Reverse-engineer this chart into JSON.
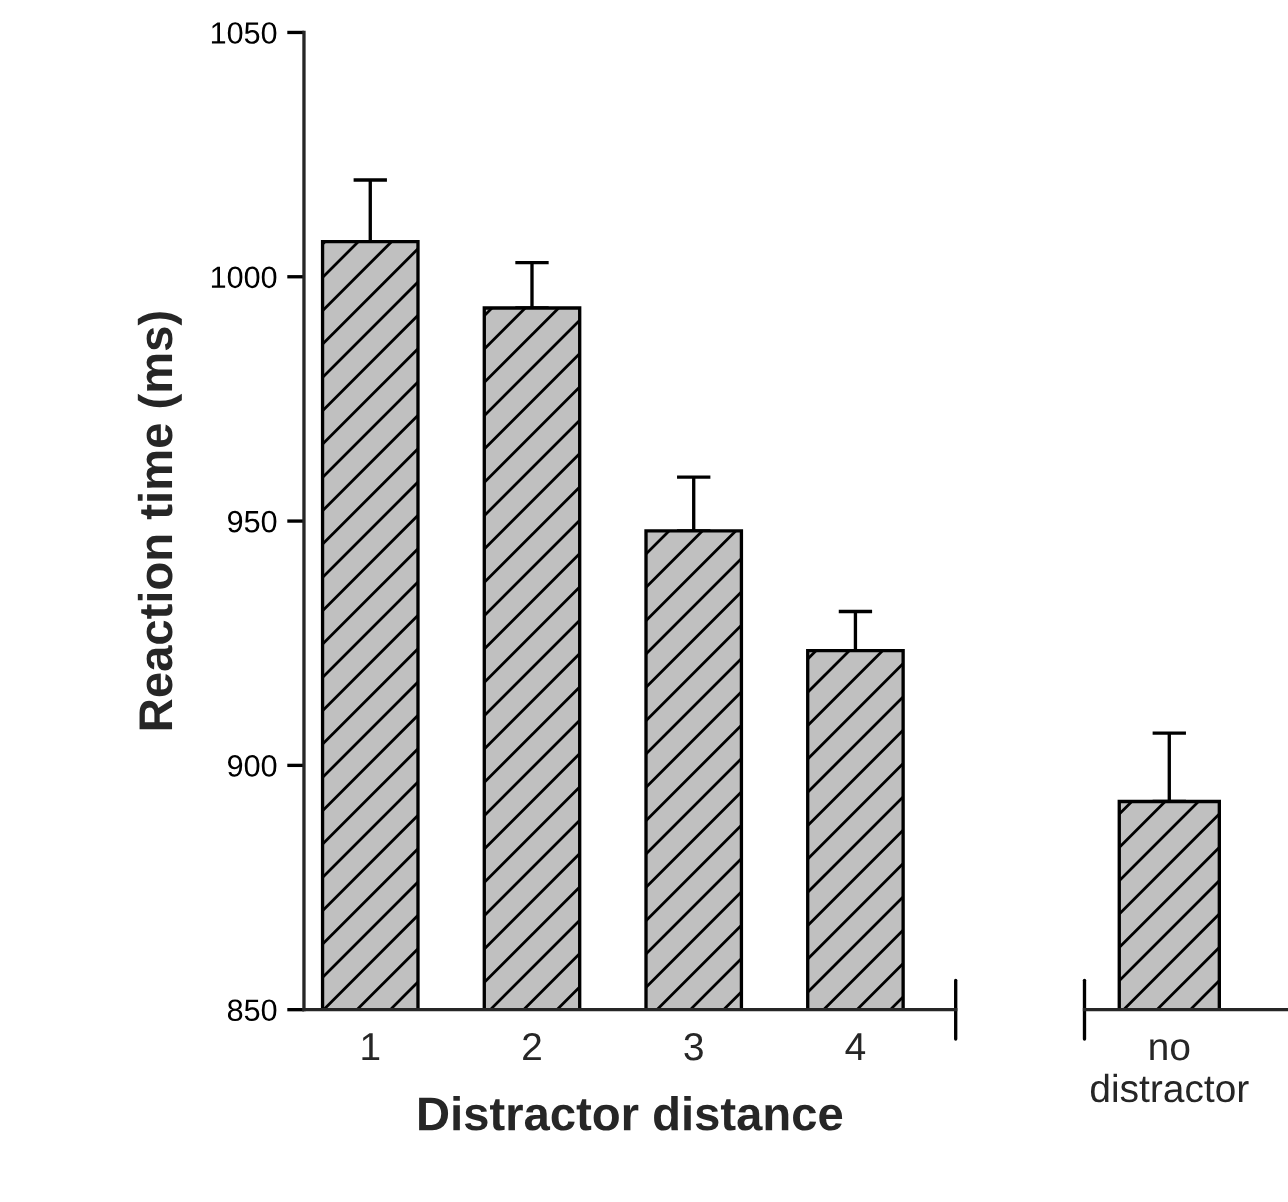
{
  "chart_data": [
    {
      "type": "bar",
      "ylabel": "Reaction time (ms)",
      "xlabel": "Distractor distance",
      "categories": [
        "1",
        "2",
        "3",
        "4"
      ],
      "series": [
        {
          "color": "#c0c0c0",
          "values": [
            1007.2,
            993.6,
            948.0,
            923.5
          ],
          "errors": [
            [
              1007.2,
              1019.8
            ],
            [
              993.6,
              1002.9
            ],
            [
              948.0,
              959.0
            ],
            [
              923.5,
              931.5
            ]
          ]
        }
      ],
      "ylim": [
        850,
        1050
      ],
      "yticks": [
        850,
        900,
        950,
        1000,
        1050
      ],
      "grid": false
    },
    {
      "type": "bar",
      "categories": [
        "no\ndistractor"
      ],
      "series": [
        {
          "color": "#c0c0c0",
          "values": [
            892.6
          ],
          "errors": [
            [
              892.6,
              906.6
            ]
          ]
        }
      ],
      "ylim": [
        850,
        1050
      ],
      "tick_labels": "x",
      "grid": false
    }
  ]
}
